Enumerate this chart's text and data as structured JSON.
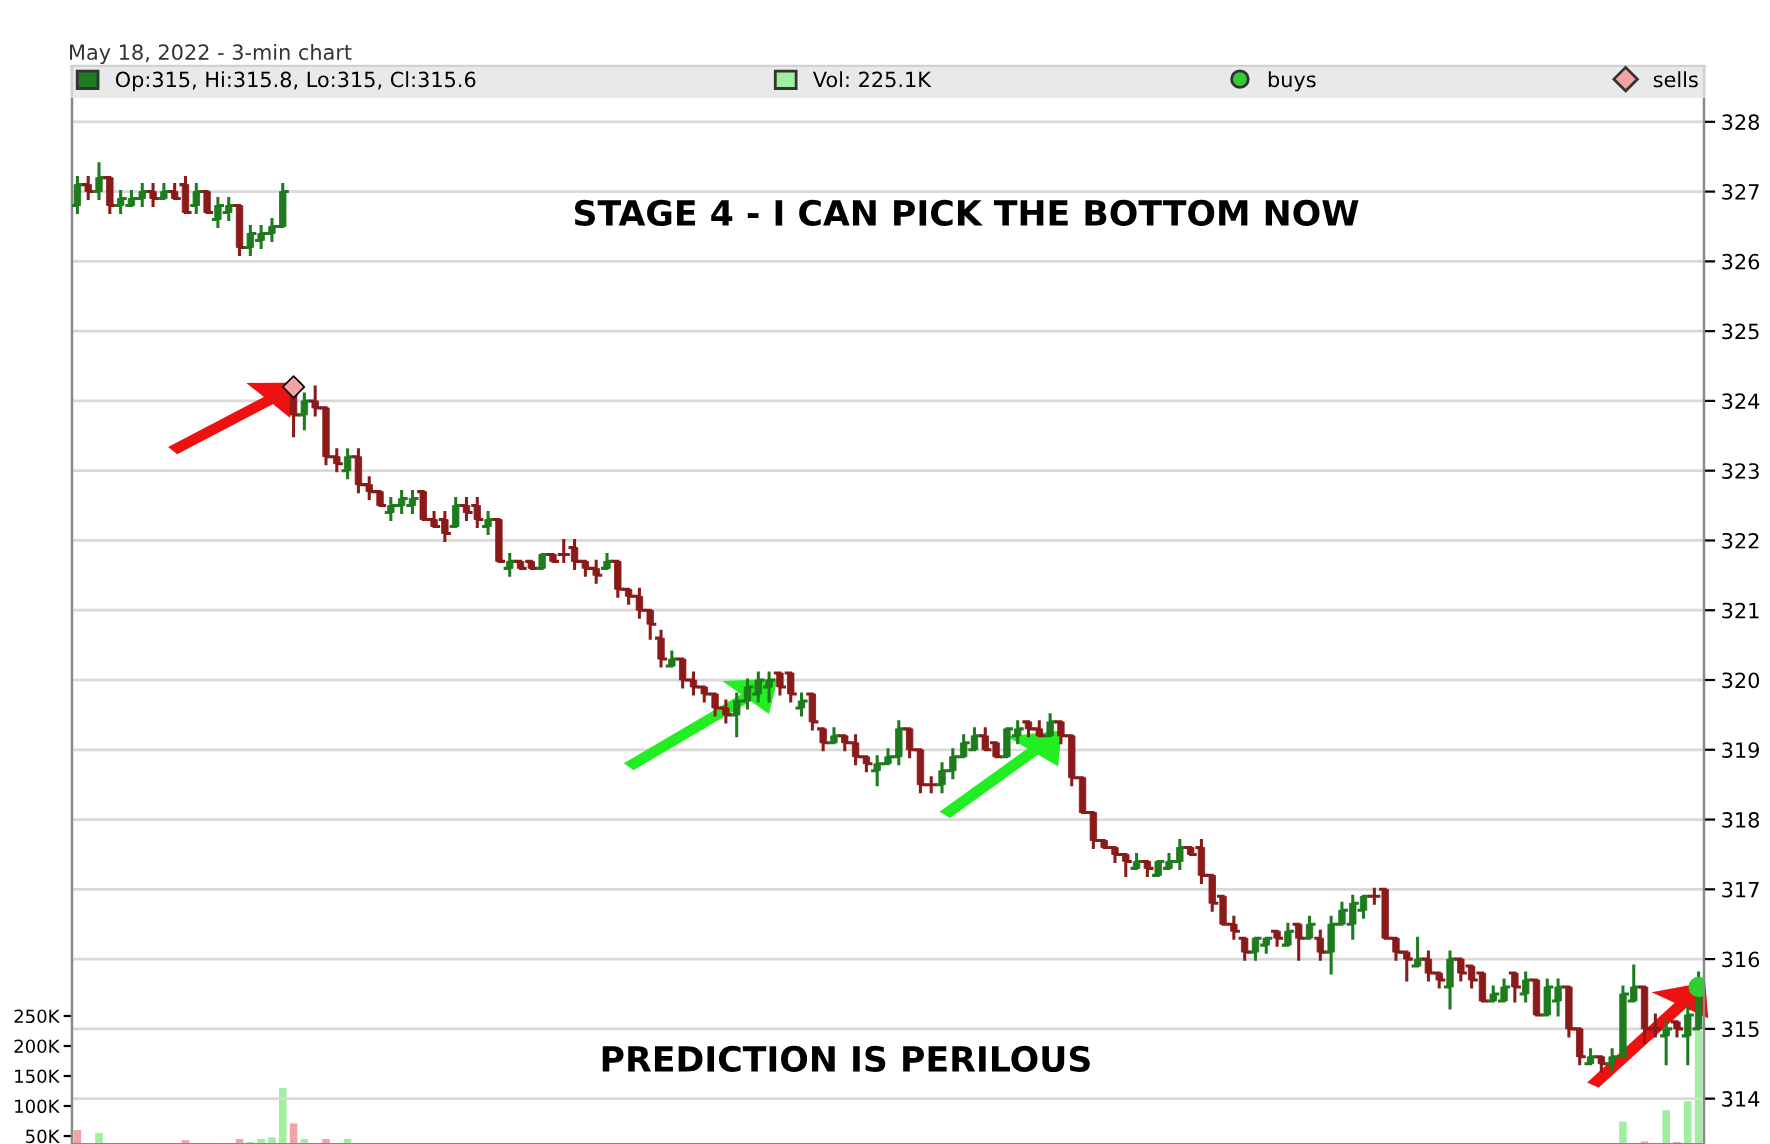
{
  "chart_data": {
    "type": "candlestick",
    "subtitle": "May 18, 2022 - 3-min chart",
    "annotations": [
      "STAGE 4 - I CAN PICK THE BOTTOM NOW",
      "PREDICTION IS PERILOUS"
    ],
    "categories": [
      null,
      null,
      null,
      null,
      null,
      null,
      null,
      null,
      null,
      null,
      null,
      null,
      null,
      null,
      null,
      null,
      null,
      null,
      null,
      null,
      null,
      null,
      null,
      null,
      null,
      null,
      null,
      null,
      null,
      null,
      null,
      null,
      null,
      null,
      null,
      null,
      null,
      null,
      null,
      null,
      null,
      null,
      null,
      null,
      null,
      null,
      null,
      null,
      null,
      null,
      null,
      null,
      null,
      null,
      null,
      null,
      null,
      null,
      null,
      null,
      null,
      null,
      null,
      null,
      null,
      null,
      null,
      null,
      null,
      null,
      null,
      null,
      null,
      null,
      null,
      null,
      null,
      null,
      null,
      null,
      null,
      null,
      null,
      null,
      null,
      null,
      null,
      null,
      null,
      null,
      null,
      null,
      null,
      null,
      null,
      null,
      null,
      null,
      null,
      null,
      null,
      null,
      null,
      null,
      null,
      null,
      null,
      null,
      null,
      null,
      null,
      null,
      null,
      null,
      null,
      null,
      null,
      null,
      null,
      null,
      null,
      null,
      null,
      null,
      null,
      null,
      null,
      null,
      null,
      null,
      null,
      null,
      null,
      null,
      null,
      null,
      null,
      null,
      null,
      null,
      null,
      null,
      null,
      null,
      null,
      null,
      null,
      null,
      null,
      null,
      null
    ],
    "ylim": [
      313.35,
      328.8
    ],
    "yticks": [
      314,
      315,
      316,
      317,
      318,
      319,
      320,
      321,
      322,
      323,
      324,
      325,
      326,
      327,
      328
    ],
    "y2lim": [
      36700,
      1833000
    ],
    "y2ticks": [
      {
        "value": 50000,
        "label": "50K"
      },
      {
        "value": 100000,
        "label": "100K"
      },
      {
        "value": 150000,
        "label": "150K"
      },
      {
        "value": 200000,
        "label": "200K"
      },
      {
        "value": 250000,
        "label": "250K"
      }
    ],
    "grid": "y",
    "legend": "top",
    "series": [
      {
        "name": "Op:315, Hi:315.8, Lo:315, Cl:315.6",
        "color": "#1e7b1e",
        "ohlc": [
          [
            326.8,
            327.2,
            326.7,
            327.1
          ],
          [
            327.1,
            327.2,
            326.9,
            327.0
          ],
          [
            327.0,
            327.4,
            326.9,
            327.2
          ],
          [
            327.2,
            327.2,
            326.7,
            326.8
          ],
          [
            326.8,
            327.0,
            326.7,
            326.9
          ],
          [
            326.8,
            327.0,
            326.8,
            326.9
          ],
          [
            326.9,
            327.1,
            326.8,
            327.0
          ],
          [
            327.0,
            327.1,
            326.8,
            326.9
          ],
          [
            326.9,
            327.1,
            326.9,
            327.0
          ],
          [
            327.0,
            327.1,
            326.9,
            326.9
          ],
          [
            327.1,
            327.2,
            326.7,
            326.7
          ],
          [
            326.8,
            327.1,
            326.7,
            327.0
          ],
          [
            327.0,
            327.0,
            326.7,
            326.7
          ],
          [
            326.6,
            326.9,
            326.5,
            326.8
          ],
          [
            326.7,
            326.9,
            326.6,
            326.8
          ],
          [
            326.8,
            326.8,
            326.1,
            326.2
          ],
          [
            326.2,
            326.5,
            326.1,
            326.4
          ],
          [
            326.3,
            326.5,
            326.2,
            326.4
          ],
          [
            326.4,
            326.6,
            326.3,
            326.5
          ],
          [
            326.5,
            327.1,
            326.5,
            327.0
          ],
          [
            324.2,
            324.2,
            323.5,
            323.8
          ],
          [
            323.8,
            324.1,
            323.6,
            324.0
          ],
          [
            324.0,
            324.2,
            323.8,
            323.9
          ],
          [
            323.9,
            323.9,
            323.1,
            323.2
          ],
          [
            323.2,
            323.3,
            323.0,
            323.1
          ],
          [
            323.0,
            323.3,
            322.9,
            323.2
          ],
          [
            323.2,
            323.3,
            322.7,
            322.8
          ],
          [
            322.8,
            322.9,
            322.6,
            322.7
          ],
          [
            322.7,
            322.7,
            322.5,
            322.5
          ],
          [
            322.4,
            322.6,
            322.3,
            322.5
          ],
          [
            322.5,
            322.7,
            322.4,
            322.6
          ],
          [
            322.5,
            322.7,
            322.4,
            322.6
          ],
          [
            322.7,
            322.7,
            322.3,
            322.3
          ],
          [
            322.3,
            322.4,
            322.2,
            322.2
          ],
          [
            322.3,
            322.4,
            322.0,
            322.1
          ],
          [
            322.2,
            322.6,
            322.2,
            322.5
          ],
          [
            322.5,
            322.6,
            322.3,
            322.4
          ],
          [
            322.5,
            322.6,
            322.2,
            322.3
          ],
          [
            322.2,
            322.4,
            322.1,
            322.3
          ],
          [
            322.3,
            322.3,
            321.7,
            321.7
          ],
          [
            321.6,
            321.8,
            321.5,
            321.7
          ],
          [
            321.7,
            321.7,
            321.6,
            321.6
          ],
          [
            321.7,
            321.7,
            321.6,
            321.6
          ],
          [
            321.6,
            321.8,
            321.6,
            321.8
          ],
          [
            321.8,
            321.8,
            321.7,
            321.7
          ],
          [
            321.8,
            322.0,
            321.7,
            321.8
          ],
          [
            321.9,
            322.0,
            321.6,
            321.7
          ],
          [
            321.7,
            321.7,
            321.5,
            321.6
          ],
          [
            321.6,
            321.7,
            321.4,
            321.5
          ],
          [
            321.6,
            321.8,
            321.6,
            321.7
          ],
          [
            321.7,
            321.7,
            321.2,
            321.3
          ],
          [
            321.3,
            321.3,
            321.1,
            321.2
          ],
          [
            321.2,
            321.3,
            320.9,
            321.0
          ],
          [
            321.0,
            321.0,
            320.6,
            320.8
          ],
          [
            320.6,
            320.7,
            320.2,
            320.3
          ],
          [
            320.2,
            320.4,
            320.2,
            320.3
          ],
          [
            320.3,
            320.3,
            319.9,
            320.0
          ],
          [
            320.0,
            320.1,
            319.8,
            319.9
          ],
          [
            319.9,
            319.9,
            319.7,
            319.8
          ],
          [
            319.8,
            319.8,
            319.5,
            319.6
          ],
          [
            319.6,
            319.7,
            319.4,
            319.5
          ],
          [
            319.5,
            319.8,
            319.2,
            319.7
          ],
          [
            319.7,
            320.0,
            319.6,
            319.9
          ],
          [
            319.8,
            320.1,
            319.7,
            320.0
          ],
          [
            319.9,
            320.1,
            319.7,
            320.0
          ],
          [
            320.1,
            320.1,
            319.8,
            319.9
          ],
          [
            320.1,
            320.1,
            319.7,
            319.8
          ],
          [
            319.6,
            319.8,
            319.5,
            319.7
          ],
          [
            319.8,
            319.8,
            319.3,
            319.4
          ],
          [
            319.3,
            319.3,
            319.0,
            319.1
          ],
          [
            319.1,
            319.3,
            319.1,
            319.2
          ],
          [
            319.2,
            319.2,
            319.0,
            319.1
          ],
          [
            319.1,
            319.2,
            318.8,
            318.9
          ],
          [
            318.9,
            318.9,
            318.7,
            318.8
          ],
          [
            318.7,
            318.9,
            318.5,
            318.8
          ],
          [
            318.8,
            319.0,
            318.8,
            318.9
          ],
          [
            318.9,
            319.4,
            318.8,
            319.3
          ],
          [
            319.3,
            319.3,
            318.9,
            319.0
          ],
          [
            319.0,
            319.0,
            318.4,
            318.5
          ],
          [
            318.5,
            318.6,
            318.4,
            318.5
          ],
          [
            318.5,
            318.8,
            318.4,
            318.7
          ],
          [
            318.7,
            319.0,
            318.6,
            318.9
          ],
          [
            318.9,
            319.2,
            318.9,
            319.1
          ],
          [
            319.0,
            319.3,
            319.0,
            319.2
          ],
          [
            319.2,
            319.3,
            319.0,
            319.0
          ],
          [
            319.1,
            319.1,
            318.9,
            318.9
          ],
          [
            318.9,
            319.3,
            318.9,
            319.3
          ],
          [
            319.2,
            319.4,
            319.1,
            319.3
          ],
          [
            319.4,
            319.4,
            319.2,
            319.3
          ],
          [
            319.3,
            319.4,
            319.2,
            319.2
          ],
          [
            319.2,
            319.5,
            319.2,
            319.4
          ],
          [
            319.4,
            319.4,
            319.1,
            319.2
          ],
          [
            319.2,
            319.2,
            318.5,
            318.6
          ],
          [
            318.6,
            318.6,
            318.1,
            318.1
          ],
          [
            318.1,
            318.1,
            317.6,
            317.7
          ],
          [
            317.7,
            317.7,
            317.6,
            317.6
          ],
          [
            317.6,
            317.6,
            317.4,
            317.5
          ],
          [
            317.5,
            317.5,
            317.2,
            317.4
          ],
          [
            317.3,
            317.5,
            317.3,
            317.4
          ],
          [
            317.4,
            317.4,
            317.2,
            317.3
          ],
          [
            317.2,
            317.4,
            317.2,
            317.4
          ],
          [
            317.3,
            317.5,
            317.3,
            317.4
          ],
          [
            317.4,
            317.7,
            317.3,
            317.6
          ],
          [
            317.6,
            317.6,
            317.5,
            317.5
          ],
          [
            317.6,
            317.7,
            317.1,
            317.2
          ],
          [
            317.2,
            317.2,
            316.7,
            316.8
          ],
          [
            316.9,
            316.9,
            316.5,
            316.5
          ],
          [
            316.5,
            316.6,
            316.3,
            316.4
          ],
          [
            316.3,
            316.3,
            316.0,
            316.1
          ],
          [
            316.1,
            316.3,
            316.0,
            316.3
          ],
          [
            316.2,
            316.3,
            316.1,
            316.3
          ],
          [
            316.4,
            316.4,
            316.2,
            316.3
          ],
          [
            316.2,
            316.5,
            316.2,
            316.4
          ],
          [
            316.5,
            316.5,
            316.0,
            316.3
          ],
          [
            316.3,
            316.6,
            316.3,
            316.5
          ],
          [
            316.3,
            316.4,
            316.0,
            316.1
          ],
          [
            316.1,
            316.6,
            315.8,
            316.5
          ],
          [
            316.5,
            316.8,
            316.5,
            316.7
          ],
          [
            316.5,
            316.9,
            316.3,
            316.8
          ],
          [
            316.7,
            316.9,
            316.6,
            316.9
          ],
          [
            316.9,
            317.0,
            316.8,
            316.9
          ],
          [
            317.0,
            317.0,
            316.3,
            316.3
          ],
          [
            316.3,
            316.3,
            316.0,
            316.1
          ],
          [
            316.1,
            316.1,
            315.7,
            316.0
          ],
          [
            315.9,
            316.3,
            315.9,
            316.0
          ],
          [
            316.0,
            316.1,
            315.7,
            315.8
          ],
          [
            315.8,
            315.8,
            315.6,
            315.7
          ],
          [
            315.6,
            316.1,
            315.3,
            316.0
          ],
          [
            316.0,
            316.0,
            315.7,
            315.8
          ],
          [
            315.9,
            315.9,
            315.6,
            315.7
          ],
          [
            315.8,
            315.8,
            315.4,
            315.4
          ],
          [
            315.4,
            315.6,
            315.4,
            315.5
          ],
          [
            315.4,
            315.7,
            315.4,
            315.6
          ],
          [
            315.8,
            315.8,
            315.4,
            315.6
          ],
          [
            315.5,
            315.8,
            315.4,
            315.7
          ],
          [
            315.7,
            315.7,
            315.2,
            315.2
          ],
          [
            315.2,
            315.7,
            315.2,
            315.6
          ],
          [
            315.4,
            315.7,
            315.2,
            315.6
          ],
          [
            315.6,
            315.6,
            314.9,
            315.0
          ],
          [
            315.0,
            315.0,
            314.5,
            314.6
          ],
          [
            314.5,
            314.7,
            314.5,
            314.6
          ],
          [
            314.6,
            314.6,
            314.4,
            314.5
          ],
          [
            314.5,
            314.7,
            314.4,
            314.6
          ],
          [
            314.6,
            315.6,
            314.6,
            315.5
          ],
          [
            315.4,
            315.9,
            315.4,
            315.6
          ],
          [
            315.6,
            315.6,
            314.8,
            315.0
          ],
          [
            315.0,
            315.2,
            314.9,
            315.0
          ],
          [
            314.9,
            315.1,
            314.5,
            315.0
          ],
          [
            315.1,
            315.1,
            314.9,
            315.0
          ],
          [
            314.9,
            315.3,
            314.5,
            315.2
          ],
          [
            315.0,
            315.8,
            315.0,
            315.6
          ]
        ],
        "colors": [
          "#1e7b1e",
          "#8b1a1a",
          "#1e7b1e",
          "#8b1a1a",
          "#1e7b1e",
          "#1e7b1e",
          "#1e7b1e",
          "#8b1a1a",
          "#1e7b1e",
          "#8b1a1a",
          "#8b1a1a",
          "#1e7b1e",
          "#8b1a1a",
          "#1e7b1e",
          "#1e7b1e",
          "#8b1a1a",
          "#1e7b1e",
          "#1e7b1e",
          "#1e7b1e",
          "#1e7b1e",
          "#8b1a1a",
          "#1e7b1e",
          "#8b1a1a",
          "#8b1a1a",
          "#8b1a1a",
          "#1e7b1e",
          "#8b1a1a",
          "#8b1a1a",
          "#8b1a1a",
          "#1e7b1e",
          "#1e7b1e",
          "#1e7b1e",
          "#8b1a1a",
          "#8b1a1a",
          "#8b1a1a",
          "#1e7b1e",
          "#8b1a1a",
          "#8b1a1a",
          "#1e7b1e",
          "#8b1a1a",
          "#1e7b1e",
          "#8b1a1a",
          "#8b1a1a",
          "#1e7b1e",
          "#8b1a1a",
          "#8b1a1a",
          "#8b1a1a",
          "#8b1a1a",
          "#8b1a1a",
          "#1e7b1e",
          "#8b1a1a",
          "#8b1a1a",
          "#8b1a1a",
          "#8b1a1a",
          "#8b1a1a",
          "#1e7b1e",
          "#8b1a1a",
          "#8b1a1a",
          "#8b1a1a",
          "#8b1a1a",
          "#8b1a1a",
          "#1e7b1e",
          "#1e7b1e",
          "#1e7b1e",
          "#1e7b1e",
          "#8b1a1a",
          "#8b1a1a",
          "#1e7b1e",
          "#8b1a1a",
          "#8b1a1a",
          "#1e7b1e",
          "#8b1a1a",
          "#8b1a1a",
          "#8b1a1a",
          "#1e7b1e",
          "#1e7b1e",
          "#1e7b1e",
          "#8b1a1a",
          "#8b1a1a",
          "#8b1a1a",
          "#1e7b1e",
          "#1e7b1e",
          "#1e7b1e",
          "#1e7b1e",
          "#8b1a1a",
          "#8b1a1a",
          "#1e7b1e",
          "#1e7b1e",
          "#8b1a1a",
          "#8b1a1a",
          "#1e7b1e",
          "#8b1a1a",
          "#8b1a1a",
          "#8b1a1a",
          "#8b1a1a",
          "#8b1a1a",
          "#8b1a1a",
          "#8b1a1a",
          "#1e7b1e",
          "#8b1a1a",
          "#1e7b1e",
          "#1e7b1e",
          "#1e7b1e",
          "#8b1a1a",
          "#8b1a1a",
          "#8b1a1a",
          "#8b1a1a",
          "#8b1a1a",
          "#8b1a1a",
          "#1e7b1e",
          "#1e7b1e",
          "#8b1a1a",
          "#1e7b1e",
          "#8b1a1a",
          "#1e7b1e",
          "#8b1a1a",
          "#1e7b1e",
          "#1e7b1e",
          "#1e7b1e",
          "#1e7b1e",
          "#8b1a1a",
          "#8b1a1a",
          "#8b1a1a",
          "#8b1a1a",
          "#1e7b1e",
          "#8b1a1a",
          "#8b1a1a",
          "#1e7b1e",
          "#8b1a1a",
          "#8b1a1a",
          "#8b1a1a",
          "#1e7b1e",
          "#1e7b1e",
          "#8b1a1a",
          "#1e7b1e",
          "#8b1a1a",
          "#1e7b1e",
          "#1e7b1e",
          "#8b1a1a",
          "#8b1a1a",
          "#1e7b1e",
          "#8b1a1a",
          "#1e7b1e",
          "#1e7b1e",
          "#1e7b1e",
          "#8b1a1a",
          "#8b1a1a",
          "#1e7b1e",
          "#8b1a1a",
          "#1e7b1e",
          "#1e7b1e"
        ]
      },
      {
        "type": "bar",
        "axis": "y2",
        "name": "Vol: 225.1K",
        "color": "#a0eea0",
        "values": [
          60000,
          null,
          55000,
          null,
          null,
          null,
          null,
          null,
          null,
          null,
          43000,
          null,
          null,
          null,
          null,
          45000,
          40000,
          45000,
          48000,
          130000,
          71000,
          45000,
          null,
          45000,
          null,
          45000,
          null,
          null,
          null,
          null,
          null,
          null,
          null,
          null,
          null,
          null,
          null,
          null,
          null,
          null,
          null,
          null,
          null,
          null,
          null,
          null,
          null,
          null,
          null,
          null,
          null,
          null,
          null,
          null,
          null,
          null,
          null,
          null,
          null,
          null,
          null,
          null,
          null,
          null,
          null,
          null,
          null,
          null,
          null,
          null,
          null,
          null,
          null,
          null,
          null,
          null,
          null,
          null,
          null,
          null,
          null,
          null,
          null,
          null,
          null,
          null,
          null,
          null,
          null,
          null,
          null,
          null,
          null,
          null,
          null,
          null,
          null,
          null,
          null,
          null,
          null,
          null,
          null,
          null,
          null,
          null,
          null,
          null,
          null,
          null,
          null,
          null,
          null,
          null,
          null,
          null,
          null,
          null,
          null,
          null,
          null,
          null,
          null,
          null,
          null,
          null,
          null,
          null,
          null,
          null,
          null,
          null,
          null,
          null,
          null,
          null,
          null,
          null,
          null,
          null,
          null,
          null,
          null,
          74000,
          null,
          41000,
          null,
          93000,
          40000,
          108000,
          225100
        ],
        "colors": [
          "#f4a3a3",
          null,
          "#a0eea0",
          null,
          null,
          null,
          null,
          null,
          null,
          null,
          "#f4a3a3",
          null,
          null,
          null,
          null,
          "#f4a3a3",
          "#a0eea0",
          "#a0eea0",
          "#a0eea0",
          "#a0eea0",
          "#f4a3a3",
          "#a0eea0",
          null,
          "#f4a3a3",
          null,
          "#a0eea0",
          null,
          null,
          null,
          null,
          null,
          null,
          null,
          null,
          null,
          null,
          null,
          null,
          null,
          null,
          null,
          null,
          null,
          null,
          null,
          null,
          null,
          null,
          null,
          null,
          null,
          null,
          null,
          null,
          null,
          null,
          null,
          null,
          null,
          null,
          null,
          null,
          null,
          null,
          null,
          null,
          null,
          null,
          null,
          null,
          null,
          null,
          null,
          null,
          null,
          null,
          null,
          null,
          null,
          null,
          null,
          null,
          null,
          null,
          null,
          null,
          null,
          null,
          null,
          null,
          null,
          null,
          null,
          null,
          null,
          null,
          null,
          null,
          null,
          null,
          null,
          null,
          null,
          null,
          null,
          null,
          null,
          null,
          null,
          null,
          null,
          null,
          null,
          null,
          null,
          null,
          null,
          null,
          null,
          null,
          null,
          null,
          null,
          null,
          null,
          null,
          null,
          null,
          null,
          null,
          null,
          null,
          null,
          null,
          null,
          null,
          null,
          null,
          null,
          null,
          null,
          null,
          null,
          "#a0eea0",
          null,
          "#f4a3a3",
          null,
          "#a0eea0",
          "#f4a3a3",
          "#a0eea0",
          "#a0eea0"
        ]
      },
      {
        "type": "scatter",
        "name": "buys",
        "color": "#33cc33",
        "marker": "circle",
        "values": [
          null,
          null,
          null,
          null,
          null,
          null,
          null,
          null,
          null,
          null,
          null,
          null,
          null,
          null,
          null,
          null,
          null,
          null,
          null,
          null,
          null,
          null,
          null,
          null,
          null,
          null,
          null,
          null,
          null,
          null,
          null,
          null,
          null,
          null,
          null,
          null,
          null,
          null,
          null,
          null,
          null,
          null,
          null,
          null,
          null,
          null,
          null,
          null,
          null,
          null,
          null,
          null,
          null,
          null,
          null,
          null,
          null,
          null,
          null,
          null,
          null,
          null,
          null,
          null,
          null,
          null,
          null,
          null,
          null,
          null,
          null,
          null,
          null,
          null,
          null,
          null,
          null,
          null,
          null,
          null,
          null,
          null,
          null,
          null,
          null,
          null,
          null,
          null,
          null,
          null,
          null,
          null,
          null,
          null,
          null,
          null,
          null,
          null,
          null,
          null,
          null,
          null,
          null,
          null,
          null,
          null,
          null,
          null,
          null,
          null,
          null,
          null,
          null,
          null,
          null,
          null,
          null,
          null,
          null,
          null,
          null,
          null,
          null,
          null,
          null,
          null,
          null,
          null,
          null,
          null,
          null,
          null,
          null,
          null,
          null,
          null,
          null,
          null,
          null,
          null,
          null,
          null,
          null,
          null,
          null,
          null,
          null,
          null,
          null,
          null,
          315.6
        ]
      },
      {
        "type": "scatter",
        "name": "sells",
        "color": "#f4a3a3",
        "marker": "diamond",
        "values": [
          null,
          null,
          null,
          null,
          null,
          null,
          null,
          null,
          null,
          null,
          null,
          null,
          null,
          null,
          null,
          null,
          null,
          null,
          null,
          null,
          324.2,
          null,
          null,
          null,
          null,
          null,
          null,
          null,
          null,
          null,
          null,
          null,
          null,
          null,
          null,
          null,
          null,
          null,
          null,
          null,
          null,
          null,
          null,
          null,
          null,
          null,
          null,
          null,
          null,
          null,
          null,
          null,
          null,
          null,
          null,
          null,
          null,
          null,
          null,
          null,
          null,
          null,
          null,
          null,
          null,
          null,
          null,
          null,
          null,
          null,
          null,
          null,
          null,
          null,
          null,
          null,
          null,
          null,
          null,
          null,
          null,
          null,
          null,
          null,
          null,
          null,
          null,
          null,
          null,
          null,
          null,
          null,
          null,
          null,
          null,
          null,
          null,
          null,
          null,
          null,
          null,
          null,
          null,
          null,
          null,
          null,
          null,
          null,
          null,
          null,
          null,
          null,
          null,
          null,
          null,
          null,
          null,
          null,
          null,
          null,
          null,
          null,
          null,
          null,
          null,
          null,
          null,
          null,
          null,
          null,
          null,
          null,
          null,
          null,
          null,
          null,
          null,
          null,
          null,
          null,
          null,
          null,
          null,
          null,
          null,
          null,
          null,
          null,
          null,
          null,
          null
        ]
      }
    ]
  }
}
